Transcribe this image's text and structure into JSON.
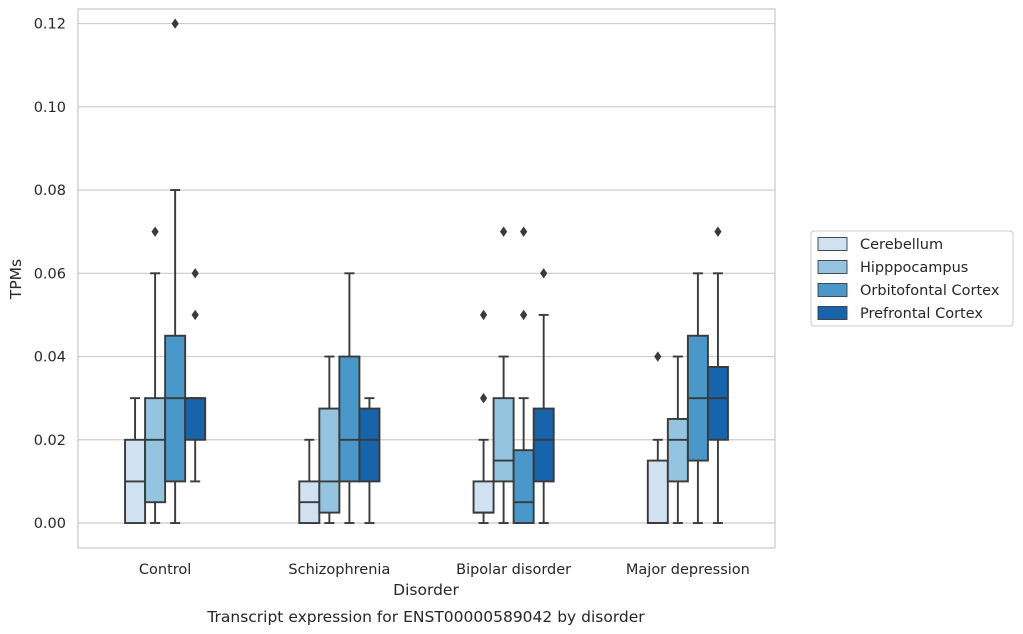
{
  "chart_data": {
    "type": "box",
    "caption": "Transcript expression for ENST00000589042 by disorder",
    "xlabel": "Disorder",
    "ylabel": "TPMs",
    "ylim": [
      -0.006,
      0.1235
    ],
    "yticks": [
      "0.00",
      "0.02",
      "0.04",
      "0.06",
      "0.08",
      "0.10",
      "0.12"
    ],
    "ytick_values": [
      0,
      0.02,
      0.04,
      0.06,
      0.08,
      0.1,
      0.12
    ],
    "grid": "horizontal",
    "legend_position": "right",
    "categories": [
      "Control",
      "Schizophrenia",
      "Bipolar disorder",
      "Major depression"
    ],
    "series": [
      {
        "name": "Cerebellum",
        "color": "#d0e1f2",
        "boxes": [
          {
            "whisker_low": 0,
            "q1": 0,
            "median": 0.01,
            "q3": 0.02,
            "whisker_high": 0.03,
            "outliers": []
          },
          {
            "whisker_low": 0,
            "q1": 0,
            "median": 0.005,
            "q3": 0.01,
            "whisker_high": 0.02,
            "outliers": []
          },
          {
            "whisker_low": 0,
            "q1": 0.0025,
            "median": 0.0025,
            "q3": 0.01,
            "whisker_high": 0.02,
            "outliers": [
              0.03,
              0.05
            ]
          },
          {
            "whisker_low": 0,
            "q1": 0,
            "median": 0,
            "q3": 0.015,
            "whisker_high": 0.02,
            "outliers": [
              0.04
            ]
          }
        ]
      },
      {
        "name": "Hipppocampus",
        "color": "#94c4df",
        "boxes": [
          {
            "whisker_low": 0,
            "q1": 0.005,
            "median": 0.02,
            "q3": 0.03,
            "whisker_high": 0.06,
            "outliers": [
              0.07
            ]
          },
          {
            "whisker_low": 0,
            "q1": 0.0025,
            "median": 0.01,
            "q3": 0.0275,
            "whisker_high": 0.04,
            "outliers": []
          },
          {
            "whisker_low": 0,
            "q1": 0.01,
            "median": 0.015,
            "q3": 0.03,
            "whisker_high": 0.04,
            "outliers": [
              0.07
            ]
          },
          {
            "whisker_low": 0,
            "q1": 0.01,
            "median": 0.02,
            "q3": 0.025,
            "whisker_high": 0.04,
            "outliers": []
          }
        ]
      },
      {
        "name": "Orbitofontal Cortex",
        "color": "#4a98c9",
        "boxes": [
          {
            "whisker_low": 0,
            "q1": 0.01,
            "median": 0.03,
            "q3": 0.045,
            "whisker_high": 0.08,
            "outliers": [
              0.12
            ]
          },
          {
            "whisker_low": 0,
            "q1": 0.01,
            "median": 0.02,
            "q3": 0.04,
            "whisker_high": 0.06,
            "outliers": []
          },
          {
            "whisker_low": 0,
            "q1": 0,
            "median": 0.005,
            "q3": 0.0175,
            "whisker_high": 0.03,
            "outliers": [
              0.05,
              0.07
            ]
          },
          {
            "whisker_low": 0,
            "q1": 0.015,
            "median": 0.03,
            "q3": 0.045,
            "whisker_high": 0.06,
            "outliers": []
          }
        ]
      },
      {
        "name": "Prefrontal Cortex",
        "color": "#1764ab",
        "boxes": [
          {
            "whisker_low": 0.01,
            "q1": 0.02,
            "median": 0.03,
            "q3": 0.03,
            "whisker_high": 0.03,
            "outliers": [
              0.05,
              0.06
            ]
          },
          {
            "whisker_low": 0,
            "q1": 0.01,
            "median": 0.02,
            "q3": 0.0275,
            "whisker_high": 0.03,
            "outliers": []
          },
          {
            "whisker_low": 0,
            "q1": 0.01,
            "median": 0.02,
            "q3": 0.0275,
            "whisker_high": 0.05,
            "outliers": [
              0.06
            ]
          },
          {
            "whisker_low": 0,
            "q1": 0.02,
            "median": 0.03,
            "q3": 0.0375,
            "whisker_high": 0.06,
            "outliers": [
              0.07
            ]
          }
        ]
      }
    ]
  }
}
